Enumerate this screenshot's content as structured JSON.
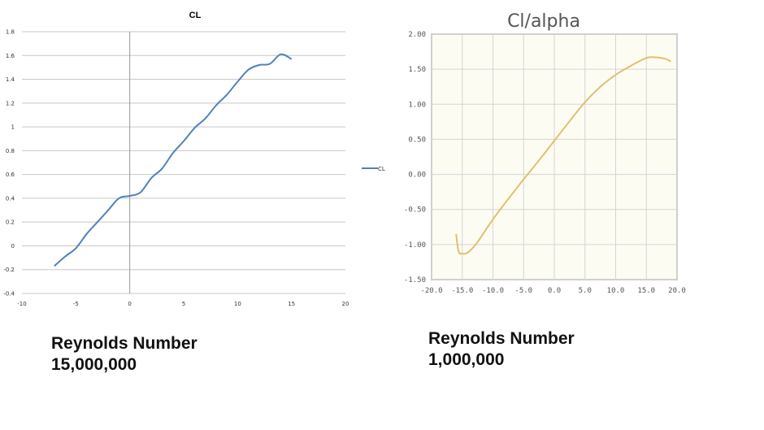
{
  "chart_data": [
    {
      "type": "line",
      "title": "CL",
      "xlim": [
        -10,
        20
      ],
      "ylim": [
        -0.4,
        1.8
      ],
      "xticks": [
        "-10",
        "-5",
        "0",
        "5",
        "10",
        "15",
        "20"
      ],
      "yticks": [
        "-0.4",
        "-0.2",
        "0",
        "0.2",
        "0.4",
        "0.6",
        "0.8",
        "1",
        "1.2",
        "1.4",
        "1.6",
        "1.8"
      ],
      "grid": true,
      "legend": "right",
      "line_color": "#4f81bd",
      "series": [
        {
          "name": "CL",
          "x": [
            -7,
            -6,
            -5,
            -4,
            -3,
            -2,
            -1,
            0,
            1,
            2,
            3,
            4,
            5,
            6,
            7,
            8,
            9,
            10,
            11,
            12,
            13,
            14,
            15
          ],
          "y": [
            -0.17,
            -0.09,
            -0.02,
            0.1,
            0.2,
            0.3,
            0.4,
            0.42,
            0.45,
            0.57,
            0.65,
            0.78,
            0.88,
            0.99,
            1.07,
            1.18,
            1.27,
            1.38,
            1.48,
            1.52,
            1.53,
            1.61,
            1.57
          ]
        }
      ]
    },
    {
      "type": "line",
      "title": "Cl/alpha",
      "xlim": [
        -20,
        20
      ],
      "ylim": [
        -1.5,
        2.0
      ],
      "xticks": [
        "-20.0",
        "-15.0",
        "-10.0",
        "-5.0",
        "0.0",
        "5.0",
        "10.0",
        "15.0",
        "20.0"
      ],
      "yticks": [
        "-1.50",
        "-1.00",
        "-0.50",
        "0.00",
        "0.50",
        "1.00",
        "1.50",
        "2.00"
      ],
      "grid": true,
      "line_color": "#e0c070",
      "background": "#fdfcf3",
      "series": [
        {
          "x": [
            -16,
            -15.6,
            -15,
            -14.2,
            -13,
            -12,
            -10,
            -7.5,
            -5,
            -2.5,
            0,
            2.5,
            5,
            7.5,
            10,
            12.5,
            15,
            16.5,
            18,
            19
          ],
          "y": [
            -0.85,
            -1.1,
            -1.13,
            -1.12,
            -1.02,
            -0.9,
            -0.64,
            -0.35,
            -0.07,
            0.2,
            0.48,
            0.76,
            1.03,
            1.25,
            1.42,
            1.55,
            1.66,
            1.67,
            1.65,
            1.61
          ]
        }
      ]
    }
  ],
  "captions": [
    {
      "line1": "Reynolds Number",
      "line2": "15,000,000"
    },
    {
      "line1": "Reynolds Number",
      "line2": "1,000,000"
    }
  ]
}
